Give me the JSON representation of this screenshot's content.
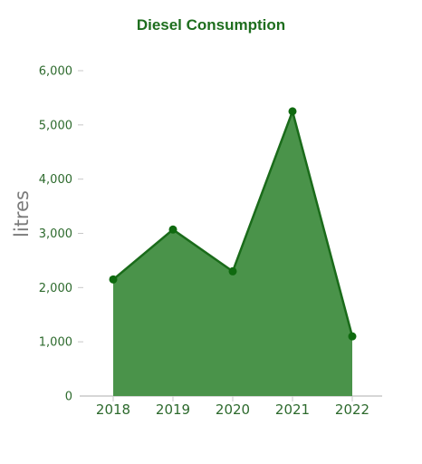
{
  "chart_data": {
    "type": "area",
    "title": "Diesel Consumption",
    "xlabel": "",
    "ylabel": "litres",
    "categories": [
      "2018",
      "2019",
      "2020",
      "2021",
      "2022"
    ],
    "series": [
      {
        "values": [
          2150,
          3070,
          2300,
          5250,
          1100
        ]
      }
    ],
    "ylim": [
      0,
      6000
    ],
    "yticks": [
      0,
      1000,
      2000,
      3000,
      4000,
      5000,
      6000
    ],
    "ytick_labels": [
      "0",
      "1,000",
      "2,000",
      "3,000",
      "4,000",
      "5,000",
      "6,000"
    ],
    "grid": false,
    "legend": "none",
    "colors": {
      "title": "#1e6e1e",
      "area_fill": "#4a934a",
      "line": "#1a6b1a",
      "point": "#0f6a0f",
      "axis": "#c8c8c8",
      "tick_text": "#2d6a2d",
      "ylabel": "#7a7a7a"
    }
  }
}
